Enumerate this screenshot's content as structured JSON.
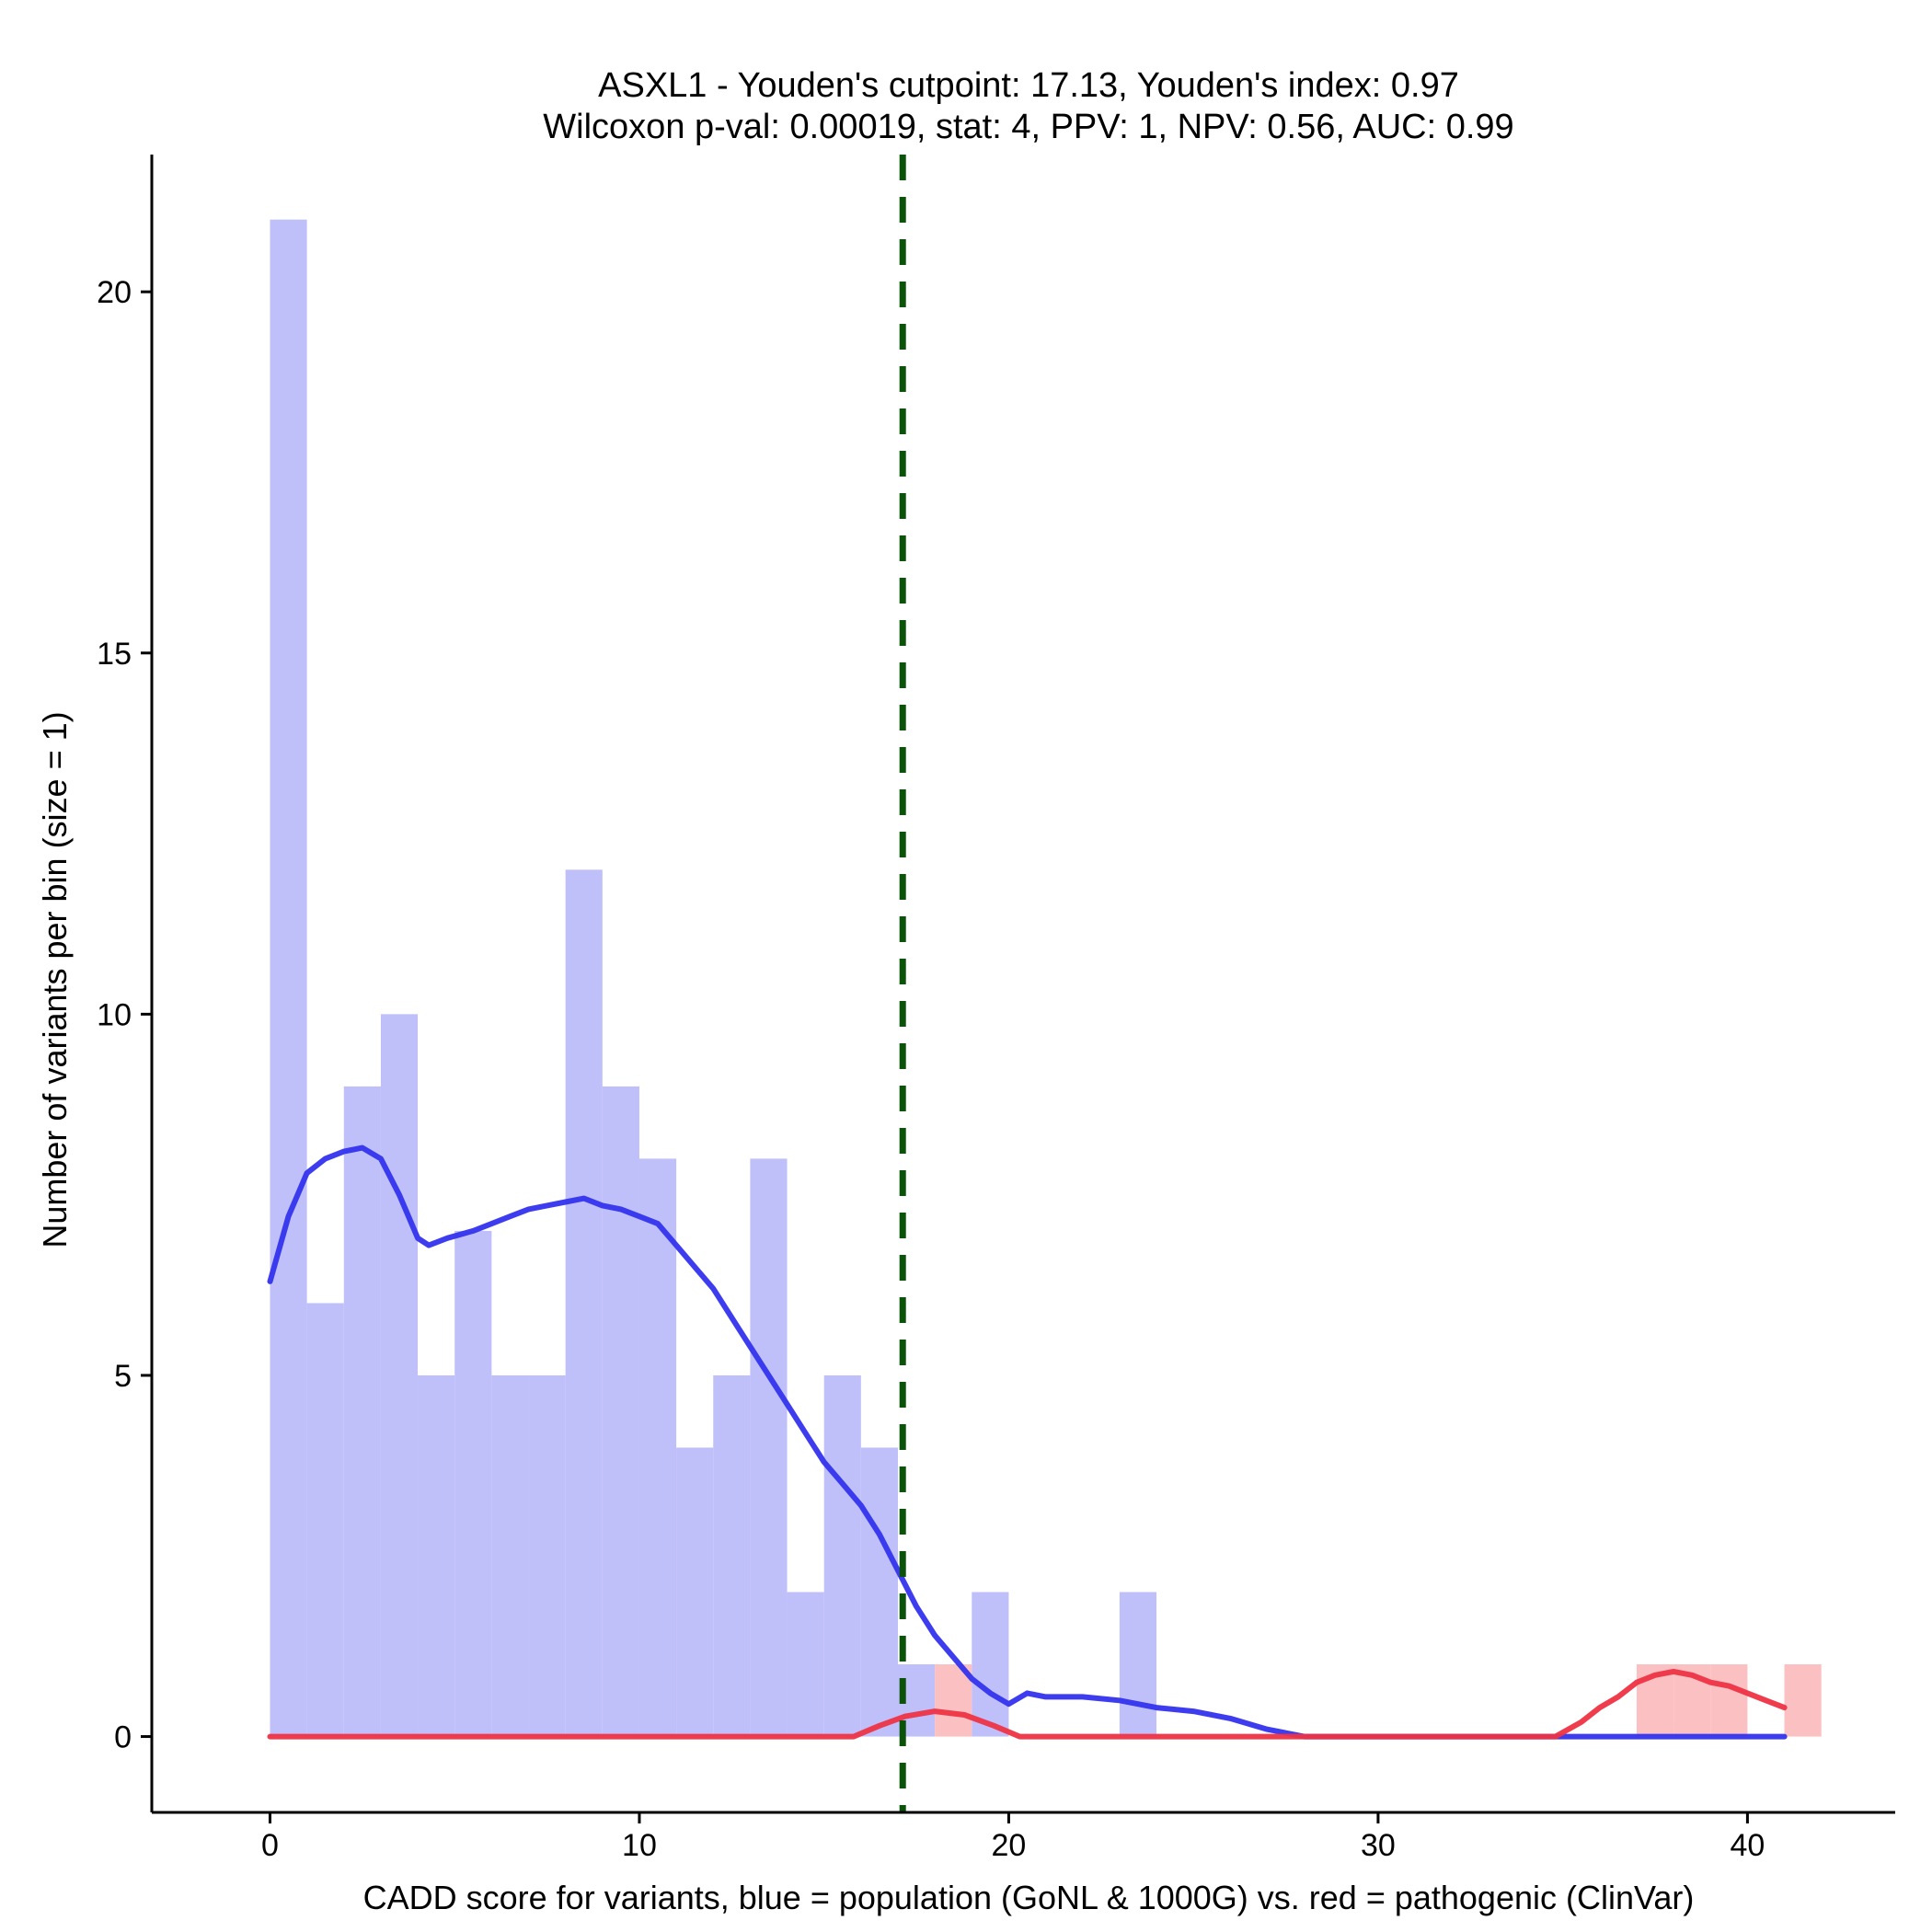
{
  "chart_data": {
    "type": "bar",
    "title_line1": "ASXL1 - Youden's cutpoint: 17.13, Youden's index: 0.97",
    "title_line2": "Wilcoxon p-val: 0.00019, stat: 4, PPV: 1, NPV: 0.56, AUC: 0.99",
    "xlabel": "CADD score for variants, blue = population (GoNL & 1000G) vs. red = pathogenic (ClinVar)",
    "ylabel": "Number of variants per bin (size = 1)",
    "xlim": [
      -3.2,
      44
    ],
    "ylim": [
      -1.05,
      21.9
    ],
    "x_ticks": [
      0,
      10,
      20,
      30,
      40
    ],
    "x_tick_labels": [
      "0",
      "10",
      "20",
      "30",
      "40"
    ],
    "y_ticks": [
      0,
      5,
      10,
      15,
      20
    ],
    "y_tick_labels": [
      "0",
      "5",
      "10",
      "15",
      "20"
    ],
    "bin_width": 1,
    "cutpoint": 17.13,
    "colors": {
      "population_fill": "#bfbffa",
      "pathogenic_fill": "#fbc0c1",
      "population_line": "#3333ee",
      "pathogenic_line": "#ee3344",
      "cutpoint_line": "#0b520b"
    },
    "series": [
      {
        "name": "population (GoNL & 1000G)",
        "bins": [
          [
            0,
            21
          ],
          [
            1,
            6
          ],
          [
            2,
            9
          ],
          [
            3,
            10
          ],
          [
            4,
            5
          ],
          [
            5,
            7
          ],
          [
            6,
            5
          ],
          [
            7,
            5
          ],
          [
            8,
            12
          ],
          [
            9,
            9
          ],
          [
            10,
            8
          ],
          [
            11,
            4
          ],
          [
            12,
            5
          ],
          [
            13,
            8
          ],
          [
            14,
            2
          ],
          [
            15,
            5
          ],
          [
            16,
            4
          ],
          [
            17,
            1
          ],
          [
            19,
            2
          ],
          [
            23,
            2
          ]
        ],
        "density_curve": [
          [
            0,
            6.3
          ],
          [
            0.5,
            7.2
          ],
          [
            1,
            7.8
          ],
          [
            1.5,
            8.0
          ],
          [
            2,
            8.1
          ],
          [
            2.5,
            8.15
          ],
          [
            3,
            8.0
          ],
          [
            3.5,
            7.5
          ],
          [
            4,
            6.9
          ],
          [
            4.3,
            6.8
          ],
          [
            4.8,
            6.9
          ],
          [
            5.5,
            7.0
          ],
          [
            6,
            7.1
          ],
          [
            6.5,
            7.2
          ],
          [
            7,
            7.3
          ],
          [
            7.5,
            7.35
          ],
          [
            8,
            7.4
          ],
          [
            8.5,
            7.45
          ],
          [
            9,
            7.35
          ],
          [
            9.5,
            7.3
          ],
          [
            10,
            7.2
          ],
          [
            10.5,
            7.1
          ],
          [
            11,
            6.8
          ],
          [
            11.5,
            6.5
          ],
          [
            12,
            6.2
          ],
          [
            12.5,
            5.8
          ],
          [
            13,
            5.4
          ],
          [
            13.5,
            5.0
          ],
          [
            14,
            4.6
          ],
          [
            14.5,
            4.2
          ],
          [
            15,
            3.8
          ],
          [
            15.5,
            3.5
          ],
          [
            16,
            3.2
          ],
          [
            16.5,
            2.8
          ],
          [
            17,
            2.3
          ],
          [
            17.5,
            1.8
          ],
          [
            18,
            1.4
          ],
          [
            18.5,
            1.1
          ],
          [
            19,
            0.8
          ],
          [
            19.5,
            0.6
          ],
          [
            20,
            0.45
          ],
          [
            20.5,
            0.6
          ],
          [
            21,
            0.55
          ],
          [
            22,
            0.55
          ],
          [
            23,
            0.5
          ],
          [
            24,
            0.4
          ],
          [
            25,
            0.35
          ],
          [
            26,
            0.25
          ],
          [
            27,
            0.1
          ],
          [
            28,
            0.0
          ],
          [
            30,
            0.0
          ],
          [
            35,
            0.0
          ],
          [
            41,
            0.0
          ]
        ]
      },
      {
        "name": "pathogenic (ClinVar)",
        "bins": [
          [
            18,
            1
          ],
          [
            37,
            1
          ],
          [
            38,
            1
          ],
          [
            39,
            1
          ],
          [
            41,
            1
          ]
        ],
        "density_curve": [
          [
            0,
            0.0
          ],
          [
            15.8,
            0.0
          ],
          [
            16.5,
            0.15
          ],
          [
            17.2,
            0.28
          ],
          [
            18,
            0.35
          ],
          [
            18.8,
            0.3
          ],
          [
            19.6,
            0.15
          ],
          [
            20.3,
            0.0
          ],
          [
            30,
            0.0
          ],
          [
            34.8,
            0.0
          ],
          [
            35.5,
            0.2
          ],
          [
            36,
            0.4
          ],
          [
            36.5,
            0.55
          ],
          [
            37,
            0.75
          ],
          [
            37.5,
            0.85
          ],
          [
            38,
            0.9
          ],
          [
            38.5,
            0.85
          ],
          [
            39,
            0.75
          ],
          [
            39.5,
            0.7
          ],
          [
            40,
            0.6
          ],
          [
            40.5,
            0.5
          ],
          [
            41,
            0.4
          ]
        ]
      }
    ]
  }
}
